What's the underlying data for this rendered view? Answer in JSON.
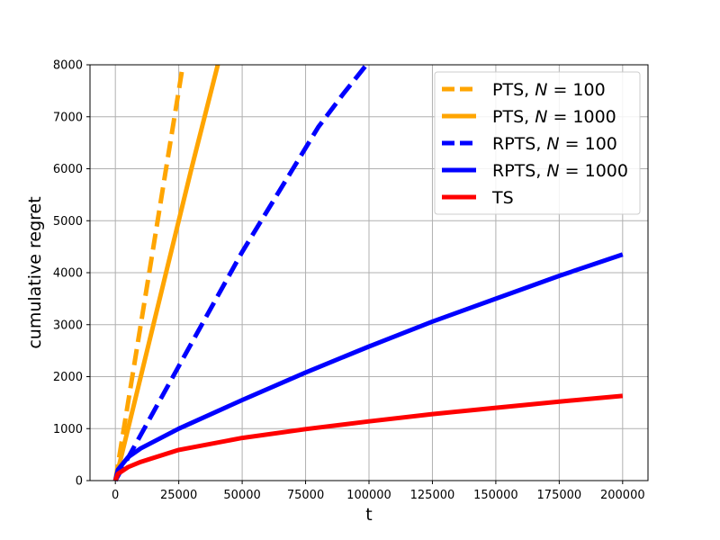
{
  "chart_data": {
    "type": "line",
    "xlabel": "t",
    "ylabel": "cumulative regret",
    "xlim": [
      -10000,
      210000
    ],
    "ylim": [
      0,
      8000
    ],
    "xticks": [
      0,
      25000,
      50000,
      75000,
      100000,
      125000,
      150000,
      175000,
      200000
    ],
    "yticks": [
      0,
      1000,
      2000,
      3000,
      4000,
      5000,
      6000,
      7000,
      8000
    ],
    "grid": true,
    "legend_position": "top-right",
    "series": [
      {
        "name": "PTS, N = 100",
        "name_parts": {
          "prefix": "PTS, ",
          "var": "N",
          "suffix": " = 100"
        },
        "color": "#ffa500",
        "style": "dashed",
        "x": [
          0,
          5000,
          10000,
          15000,
          20000,
          25000,
          26300
        ],
        "y": [
          0,
          1500,
          3000,
          4500,
          6000,
          7500,
          7900
        ]
      },
      {
        "name": "PTS, N = 1000",
        "name_parts": {
          "prefix": "PTS, ",
          "var": "N",
          "suffix": " = 1000"
        },
        "color": "#ffa500",
        "style": "solid",
        "x": [
          0,
          5000,
          10000,
          20000,
          30000,
          40400
        ],
        "y": [
          0,
          1000,
          2000,
          4000,
          6000,
          8000
        ]
      },
      {
        "name": "RPTS, N = 100",
        "name_parts": {
          "prefix": "RPTS, ",
          "var": "N",
          "suffix": " = 100"
        },
        "color": "#0000ff",
        "style": "dashed",
        "x": [
          0,
          10000,
          20000,
          30000,
          40000,
          50000,
          60000,
          70000,
          80000,
          90000,
          99000
        ],
        "y": [
          0,
          880,
          1760,
          2640,
          3520,
          4400,
          5200,
          6000,
          6800,
          7450,
          8000
        ]
      },
      {
        "name": "RPTS, N = 1000",
        "name_parts": {
          "prefix": "RPTS, ",
          "var": "N",
          "suffix": " = 1000"
        },
        "color": "#0000ff",
        "style": "solid",
        "x": [
          0,
          1000,
          5000,
          10000,
          25000,
          50000,
          75000,
          100000,
          125000,
          150000,
          175000,
          200000
        ],
        "y": [
          0,
          210,
          450,
          620,
          1000,
          1550,
          2080,
          2580,
          3060,
          3500,
          3940,
          4350
        ]
      },
      {
        "name": "TS",
        "name_parts": {
          "prefix": "TS",
          "var": "",
          "suffix": ""
        },
        "color": "#ff0000",
        "style": "solid",
        "x": [
          0,
          1000,
          5000,
          10000,
          25000,
          50000,
          75000,
          100000,
          125000,
          150000,
          175000,
          200000
        ],
        "y": [
          0,
          130,
          260,
          360,
          590,
          820,
          990,
          1140,
          1280,
          1400,
          1520,
          1630
        ]
      }
    ]
  }
}
